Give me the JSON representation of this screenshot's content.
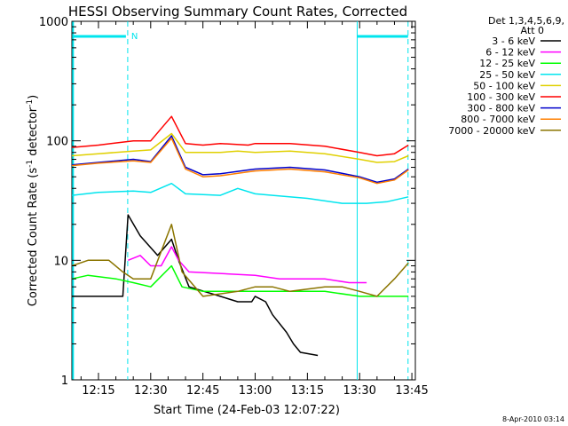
{
  "chart_data": {
    "type": "line",
    "title": "HESSI Observing Summary Count Rates, Corrected",
    "xlabel": "Start Time (24-Feb-03 12:07:22)",
    "ylabel_main": "Corrected Count Rate (s",
    "ylabel_sup1": "-1",
    "ylabel_mid": " detector",
    "ylabel_sup2": "-1",
    "ylabel_end": ")",
    "y_scale": "log",
    "ylim": [
      1,
      1000
    ],
    "xlim_minutes": [
      727.37,
      826
    ],
    "x_ticks": [
      {
        "minute": 735,
        "label": "12:15"
      },
      {
        "minute": 750,
        "label": "12:30"
      },
      {
        "minute": 765,
        "label": "12:45"
      },
      {
        "minute": 780,
        "label": "13:00"
      },
      {
        "minute": 795,
        "label": "13:15"
      },
      {
        "minute": 810,
        "label": "13:30"
      },
      {
        "minute": 825,
        "label": "13:45"
      }
    ],
    "y_ticks": [
      {
        "value": 1,
        "label": "1"
      },
      {
        "value": 10,
        "label": "10"
      },
      {
        "value": 100,
        "label": "100"
      },
      {
        "value": 1000,
        "label": "1000"
      }
    ],
    "legend_header": [
      "Det 1,3,4,5,6,9,",
      "Att 0"
    ],
    "legend_placement": "right",
    "series": [
      {
        "name": "3 - 6 keV",
        "color": "#000000",
        "points": [
          [
            727.4,
            5
          ],
          [
            742,
            5
          ],
          [
            743.5,
            24
          ],
          [
            747,
            16
          ],
          [
            752,
            11
          ],
          [
            756,
            15
          ],
          [
            758,
            10
          ],
          [
            761,
            6
          ],
          [
            770,
            5
          ],
          [
            775,
            4.5
          ],
          [
            779,
            4.5
          ],
          [
            780,
            5
          ],
          [
            783,
            4.5
          ],
          [
            785,
            3.5
          ],
          [
            789,
            2.5
          ],
          [
            791,
            2
          ],
          [
            793,
            1.7
          ],
          [
            798,
            1.6
          ]
        ]
      },
      {
        "name": "6 - 12 keV",
        "color": "#ff00ff",
        "points": [
          [
            743.5,
            10
          ],
          [
            747,
            11
          ],
          [
            750,
            9
          ],
          [
            753,
            9
          ],
          [
            756,
            13
          ],
          [
            758,
            10
          ],
          [
            761,
            8
          ],
          [
            780,
            7.5
          ],
          [
            787,
            7
          ],
          [
            800,
            7
          ],
          [
            807,
            6.5
          ],
          [
            812,
            6.5
          ]
        ]
      },
      {
        "name": "12 - 25 keV",
        "color": "#00ff00",
        "points": [
          [
            727.4,
            7
          ],
          [
            732,
            7.5
          ],
          [
            740,
            7
          ],
          [
            745,
            6.5
          ],
          [
            750,
            6
          ],
          [
            756,
            9
          ],
          [
            759,
            6
          ],
          [
            765,
            5.5
          ],
          [
            780,
            5.5
          ],
          [
            790,
            5.5
          ],
          [
            800,
            5.5
          ],
          [
            810,
            5
          ],
          [
            820,
            5
          ],
          [
            824,
            5
          ]
        ]
      },
      {
        "name": "25 - 50 keV",
        "color": "#00e5ee",
        "points": [
          [
            727.4,
            35
          ],
          [
            735,
            37
          ],
          [
            745,
            38
          ],
          [
            750,
            37
          ],
          [
            756,
            44
          ],
          [
            760,
            36
          ],
          [
            770,
            35
          ],
          [
            775,
            40
          ],
          [
            780,
            36
          ],
          [
            785,
            35
          ],
          [
            795,
            33
          ],
          [
            805,
            30
          ],
          [
            812,
            30
          ],
          [
            818,
            31
          ],
          [
            824,
            34
          ]
        ]
      },
      {
        "name": "50 - 100 keV",
        "color": "#e0d000",
        "points": [
          [
            727.4,
            75
          ],
          [
            735,
            78
          ],
          [
            745,
            82
          ],
          [
            750,
            84
          ],
          [
            756,
            115
          ],
          [
            760,
            80
          ],
          [
            770,
            80
          ],
          [
            775,
            82
          ],
          [
            780,
            80
          ],
          [
            790,
            82
          ],
          [
            800,
            78
          ],
          [
            810,
            70
          ],
          [
            815,
            66
          ],
          [
            820,
            67
          ],
          [
            824,
            75
          ]
        ]
      },
      {
        "name": "100 - 300 keV",
        "color": "#ff0000",
        "points": [
          [
            727.4,
            88
          ],
          [
            735,
            92
          ],
          [
            745,
            100
          ],
          [
            750,
            100
          ],
          [
            756,
            160
          ],
          [
            760,
            95
          ],
          [
            765,
            92
          ],
          [
            770,
            95
          ],
          [
            778,
            92
          ],
          [
            780,
            95
          ],
          [
            790,
            95
          ],
          [
            800,
            90
          ],
          [
            810,
            80
          ],
          [
            815,
            75
          ],
          [
            820,
            78
          ],
          [
            824,
            92
          ]
        ]
      },
      {
        "name": "300 - 800 keV",
        "color": "#0000cc",
        "points": [
          [
            727.4,
            63
          ],
          [
            735,
            66
          ],
          [
            745,
            70
          ],
          [
            750,
            67
          ],
          [
            756,
            110
          ],
          [
            760,
            60
          ],
          [
            765,
            52
          ],
          [
            770,
            53
          ],
          [
            778,
            57
          ],
          [
            780,
            58
          ],
          [
            790,
            60
          ],
          [
            800,
            57
          ],
          [
            810,
            50
          ],
          [
            815,
            45
          ],
          [
            820,
            48
          ],
          [
            824,
            58
          ]
        ]
      },
      {
        "name": "800 - 7000 keV",
        "color": "#ff7f00",
        "points": [
          [
            727.4,
            62
          ],
          [
            735,
            65
          ],
          [
            745,
            68
          ],
          [
            750,
            66
          ],
          [
            756,
            105
          ],
          [
            760,
            58
          ],
          [
            765,
            50
          ],
          [
            770,
            51
          ],
          [
            778,
            55
          ],
          [
            780,
            56
          ],
          [
            790,
            58
          ],
          [
            800,
            55
          ],
          [
            810,
            49
          ],
          [
            815,
            44
          ],
          [
            820,
            47
          ],
          [
            824,
            57
          ]
        ]
      },
      {
        "name": "7000 - 20000 keV",
        "color": "#8b7500",
        "points": [
          [
            727.4,
            9
          ],
          [
            732,
            10
          ],
          [
            738,
            10
          ],
          [
            742,
            8
          ],
          [
            745,
            7
          ],
          [
            750,
            7
          ],
          [
            756,
            20
          ],
          [
            759,
            8
          ],
          [
            765,
            5
          ],
          [
            775,
            5.5
          ],
          [
            780,
            6
          ],
          [
            785,
            6
          ],
          [
            790,
            5.5
          ],
          [
            800,
            6
          ],
          [
            805,
            6
          ],
          [
            810,
            5.5
          ],
          [
            815,
            5
          ],
          [
            820,
            7
          ],
          [
            824,
            9.5
          ]
        ]
      }
    ],
    "night_markers_minutes": [
      727.7,
      743.4,
      809.3,
      823.9
    ],
    "night_label": "N",
    "footer": "8-Apr-2010 03:14"
  }
}
